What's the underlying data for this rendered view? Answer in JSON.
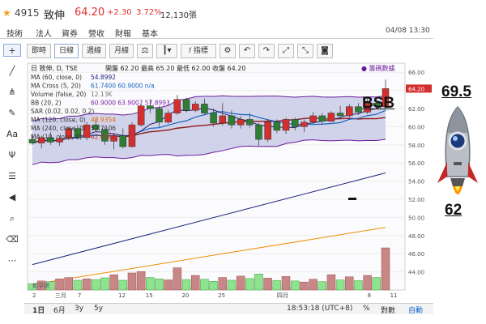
{
  "header": {
    "star": "★",
    "code": "4915",
    "name": "致伸",
    "price": "64.20",
    "change": "+2.30",
    "change_pct": "3.72%",
    "volume": "12,130張",
    "datetime": "04/08 13:30"
  },
  "tabs": [
    {
      "label": "技術",
      "active": true
    },
    {
      "label": "法人",
      "active": false
    },
    {
      "label": "資券",
      "active": false
    },
    {
      "label": "營收",
      "active": false
    },
    {
      "label": "財報",
      "active": false
    },
    {
      "label": "基本",
      "active": false
    }
  ],
  "left_tools": [
    {
      "icon": "crosshair-icon",
      "glyph": "+",
      "selected": true
    },
    {
      "icon": "line-tool-icon",
      "glyph": "╱"
    },
    {
      "icon": "fork-tool-icon",
      "glyph": "⋔"
    },
    {
      "icon": "brush-icon",
      "glyph": "✎"
    },
    {
      "icon": "text-tool-icon",
      "glyph": "Aa"
    },
    {
      "icon": "pattern-tool-icon",
      "glyph": "Ψ"
    },
    {
      "icon": "fib-tool-icon",
      "glyph": "☰"
    },
    {
      "icon": "back-arrow-icon",
      "glyph": "◀"
    },
    {
      "icon": "zoom-icon",
      "glyph": "⌕"
    },
    {
      "icon": "eraser-icon",
      "glyph": "⌫"
    },
    {
      "icon": "more-icon",
      "glyph": "⋯"
    }
  ],
  "toolbar": {
    "periods": [
      {
        "label": "即時",
        "active": false
      },
      {
        "label": "日線",
        "active": true
      },
      {
        "label": "週線",
        "active": false
      },
      {
        "label": "月線",
        "active": false
      }
    ],
    "indicator_label": "指標",
    "icons": [
      "compare-icon",
      "candle-type-icon",
      "indicator-icon",
      "settings-icon",
      "undo-icon",
      "redo-icon",
      "fullscreen-icon",
      "shrink-icon",
      "camera-icon"
    ]
  },
  "legend": {
    "title": "日 致伸, D, TSE",
    "ohlc": "開盤 62.20 最高 65.20 最低 62.00 收盤 64.20",
    "ind": [
      {
        "label": "MA (60, close, 0)",
        "value": "54.8992",
        "color": "#1a237e"
      },
      {
        "label": "MA Cross (5, 20)",
        "value": "61.7400 60.9000 n/a",
        "color": "#1565c0"
      },
      {
        "label": "Volume (false, 20)",
        "value": "12.13K",
        "color": "#777777"
      },
      {
        "label": "BB (20, 2)",
        "value": "60.9000 63.9007 57.8993",
        "color": "#7b1fa2"
      },
      {
        "label": "SAR (0.02, 0.02, 0.2)",
        "value": "",
        "color": "#333333"
      },
      {
        "label": "MA (120, close, 0)",
        "value": "48.9354",
        "color": "#ef6c00"
      },
      {
        "label": "MA (240, close, 0)",
        "value": "52.7106",
        "color": "#333333"
      },
      {
        "label": "MA (10, close, 0)",
        "value": "62.0200",
        "color": "#c62828"
      }
    ],
    "right_link": "● 籌碼數據",
    "watermark": "鉅亨網"
  },
  "chart_data": {
    "type": "candlestick",
    "ylim": [
      42,
      67
    ],
    "yticks": [
      44,
      46,
      48,
      50,
      52,
      54,
      56,
      58,
      60,
      62,
      64,
      66
    ],
    "last_price_label": "64.20",
    "x_tick_labels": [
      "2",
      "三月",
      "7",
      "12",
      "15",
      "20",
      "25",
      "四月",
      "8",
      "11"
    ],
    "candles": [
      {
        "o": 58.6,
        "h": 59.2,
        "l": 58.0,
        "c": 58.2
      },
      {
        "o": 58.2,
        "h": 59.0,
        "l": 57.6,
        "c": 58.8
      },
      {
        "o": 58.8,
        "h": 59.4,
        "l": 58.0,
        "c": 58.3
      },
      {
        "o": 58.3,
        "h": 59.0,
        "l": 57.9,
        "c": 58.7
      },
      {
        "o": 58.7,
        "h": 60.0,
        "l": 58.5,
        "c": 59.8
      },
      {
        "o": 59.8,
        "h": 60.2,
        "l": 58.6,
        "c": 58.8
      },
      {
        "o": 58.8,
        "h": 60.5,
        "l": 58.5,
        "c": 60.2
      },
      {
        "o": 60.2,
        "h": 60.8,
        "l": 59.5,
        "c": 59.7
      },
      {
        "o": 59.7,
        "h": 60.0,
        "l": 58.0,
        "c": 58.4
      },
      {
        "o": 58.4,
        "h": 59.3,
        "l": 57.5,
        "c": 59.0
      },
      {
        "o": 59.0,
        "h": 59.8,
        "l": 57.6,
        "c": 57.8
      },
      {
        "o": 57.8,
        "h": 60.5,
        "l": 57.7,
        "c": 60.2
      },
      {
        "o": 60.2,
        "h": 62.5,
        "l": 60.0,
        "c": 62.3
      },
      {
        "o": 62.3,
        "h": 63.0,
        "l": 61.5,
        "c": 62.0
      },
      {
        "o": 62.0,
        "h": 62.3,
        "l": 60.0,
        "c": 60.5
      },
      {
        "o": 60.5,
        "h": 61.8,
        "l": 60.3,
        "c": 61.5
      },
      {
        "o": 61.5,
        "h": 63.5,
        "l": 61.3,
        "c": 63.0
      },
      {
        "o": 63.0,
        "h": 63.2,
        "l": 61.6,
        "c": 61.8
      },
      {
        "o": 61.8,
        "h": 62.8,
        "l": 61.6,
        "c": 62.5
      },
      {
        "o": 62.5,
        "h": 63.1,
        "l": 61.3,
        "c": 61.5
      },
      {
        "o": 61.5,
        "h": 62.0,
        "l": 60.0,
        "c": 60.4
      },
      {
        "o": 60.4,
        "h": 62.6,
        "l": 60.1,
        "c": 61.2
      },
      {
        "o": 61.2,
        "h": 61.8,
        "l": 59.8,
        "c": 60.2
      },
      {
        "o": 60.2,
        "h": 61.2,
        "l": 59.8,
        "c": 60.8
      },
      {
        "o": 60.8,
        "h": 61.5,
        "l": 59.9,
        "c": 60.2
      },
      {
        "o": 60.2,
        "h": 60.4,
        "l": 57.9,
        "c": 58.6
      },
      {
        "o": 58.6,
        "h": 60.8,
        "l": 58.3,
        "c": 60.5
      },
      {
        "o": 60.5,
        "h": 60.8,
        "l": 59.3,
        "c": 59.6
      },
      {
        "o": 59.6,
        "h": 61.0,
        "l": 59.2,
        "c": 60.8
      },
      {
        "o": 60.8,
        "h": 61.0,
        "l": 59.6,
        "c": 60.0
      },
      {
        "o": 60.0,
        "h": 60.8,
        "l": 59.4,
        "c": 60.5
      },
      {
        "o": 60.5,
        "h": 61.6,
        "l": 60.3,
        "c": 61.2
      },
      {
        "o": 61.2,
        "h": 61.5,
        "l": 60.2,
        "c": 60.6
      },
      {
        "o": 60.6,
        "h": 61.7,
        "l": 60.5,
        "c": 61.5
      },
      {
        "o": 61.5,
        "h": 62.3,
        "l": 60.9,
        "c": 61.2
      },
      {
        "o": 61.2,
        "h": 62.5,
        "l": 61.0,
        "c": 62.2
      },
      {
        "o": 62.2,
        "h": 62.6,
        "l": 61.3,
        "c": 61.6
      },
      {
        "o": 61.6,
        "h": 63.1,
        "l": 61.4,
        "c": 62.6
      },
      {
        "o": 62.6,
        "h": 62.9,
        "l": 62.0,
        "c": 62.3
      },
      {
        "o": 62.2,
        "h": 65.2,
        "l": 62.0,
        "c": 64.2
      }
    ],
    "volumes": [
      {
        "v": 1.8,
        "up": false
      },
      {
        "v": 2.6,
        "up": true
      },
      {
        "v": 2.4,
        "up": false
      },
      {
        "v": 3.2,
        "up": true
      },
      {
        "v": 3.6,
        "up": true
      },
      {
        "v": 2.8,
        "up": false
      },
      {
        "v": 3.2,
        "up": true
      },
      {
        "v": 3.0,
        "up": false
      },
      {
        "v": 3.5,
        "up": false
      },
      {
        "v": 4.4,
        "up": true
      },
      {
        "v": 2.8,
        "up": false
      },
      {
        "v": 4.9,
        "up": true
      },
      {
        "v": 5.3,
        "up": true
      },
      {
        "v": 3.6,
        "up": false
      },
      {
        "v": 3.2,
        "up": false
      },
      {
        "v": 2.9,
        "up": true
      },
      {
        "v": 6.4,
        "up": true
      },
      {
        "v": 3.0,
        "up": false
      },
      {
        "v": 4.2,
        "up": true
      },
      {
        "v": 3.1,
        "up": false
      },
      {
        "v": 2.5,
        "up": false
      },
      {
        "v": 3.6,
        "up": true
      },
      {
        "v": 2.8,
        "up": false
      },
      {
        "v": 4.0,
        "up": true
      },
      {
        "v": 3.3,
        "up": false
      },
      {
        "v": 4.6,
        "up": false
      },
      {
        "v": 3.4,
        "up": true
      },
      {
        "v": 2.7,
        "up": false
      },
      {
        "v": 3.9,
        "up": true
      },
      {
        "v": 2.6,
        "up": false
      },
      {
        "v": 2.3,
        "up": true
      },
      {
        "v": 3.1,
        "up": true
      },
      {
        "v": 2.4,
        "up": false
      },
      {
        "v": 4.4,
        "up": true
      },
      {
        "v": 2.9,
        "up": false
      },
      {
        "v": 3.8,
        "up": true
      },
      {
        "v": 2.7,
        "up": false
      },
      {
        "v": 4.2,
        "up": true
      },
      {
        "v": 3.6,
        "up": false
      },
      {
        "v": 12.13,
        "up": true
      }
    ],
    "vol_ylim": [
      0,
      14
    ],
    "colors": {
      "up": "#d32f2f",
      "down": "#2e7d32",
      "vol_up": "#c98686",
      "vol_down": "#8ee38e",
      "bb_fill": "#c9cbe8",
      "bb_line": "#6a1b9a",
      "ma5": "#1565c0",
      "ma20": "#1a237e",
      "ma10": "#b71c1c",
      "ma60": "#1a237e",
      "ma120": "#ef8f00",
      "ma240": "#8e24aa"
    }
  },
  "bottom_bar": {
    "ranges": [
      {
        "label": "1日",
        "active": true
      },
      {
        "label": "6月",
        "active": false
      },
      {
        "label": "3y",
        "active": false
      },
      {
        "label": "5y",
        "active": false
      }
    ],
    "time": "18:53:18 (UTC+8)",
    "options": [
      {
        "label": "%",
        "on": false
      },
      {
        "label": "對數",
        "on": false
      },
      {
        "label": "自動",
        "on": true
      }
    ]
  },
  "annotations": {
    "bsb": "BSB",
    "target_high": "69.5",
    "target_low": "62"
  }
}
